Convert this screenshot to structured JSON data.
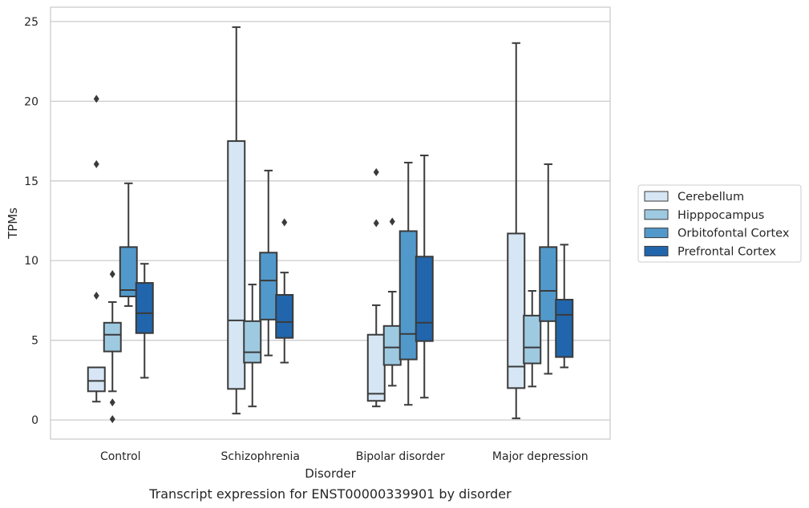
{
  "chart_data": {
    "type": "box",
    "caption": "Transcript expression for ENST00000339901 by disorder",
    "xlabel": "Disorder",
    "ylabel": "TPMs",
    "ylim": [
      -1.2,
      25.9
    ],
    "yticks": [
      0,
      5,
      10,
      15,
      20,
      25
    ],
    "grid": "horizontal",
    "legend_position": "right",
    "categories": [
      "Control",
      "Schizophrenia",
      "Bipolar disorder",
      "Major depression"
    ],
    "series": [
      {
        "name": "Cerebellum",
        "color": "#d6e6f4",
        "boxes": [
          {
            "whislo": 1.15,
            "q1": 1.8,
            "med": 2.45,
            "q3": 3.3,
            "whishi": 3.3,
            "fliers": [
              7.8,
              16.05,
              20.15
            ]
          },
          {
            "whislo": 0.4,
            "q1": 1.95,
            "med": 6.25,
            "q3": 17.5,
            "whishi": 24.65,
            "fliers": []
          },
          {
            "whislo": 0.85,
            "q1": 1.2,
            "med": 1.65,
            "q3": 5.35,
            "whishi": 7.2,
            "fliers": [
              12.35,
              15.55
            ]
          },
          {
            "whislo": 0.1,
            "q1": 2.0,
            "med": 3.35,
            "q3": 11.7,
            "whishi": 23.65,
            "fliers": []
          }
        ]
      },
      {
        "name": "Hipppocampus",
        "color": "#9ecae1",
        "boxes": [
          {
            "whislo": 1.8,
            "q1": 4.3,
            "med": 5.35,
            "q3": 6.1,
            "whishi": 7.4,
            "fliers": [
              0.05,
              1.1,
              9.15
            ]
          },
          {
            "whislo": 0.85,
            "q1": 3.6,
            "med": 4.25,
            "q3": 6.2,
            "whishi": 8.5,
            "fliers": []
          },
          {
            "whislo": 2.15,
            "q1": 3.45,
            "med": 4.55,
            "q3": 5.9,
            "whishi": 8.05,
            "fliers": [
              12.45
            ]
          },
          {
            "whislo": 2.1,
            "q1": 3.55,
            "med": 4.55,
            "q3": 6.55,
            "whishi": 8.1,
            "fliers": []
          }
        ]
      },
      {
        "name": "Orbitofontal Cortex",
        "color": "#5299cb",
        "boxes": [
          {
            "whislo": 7.15,
            "q1": 7.75,
            "med": 8.15,
            "q3": 10.85,
            "whishi": 14.85,
            "fliers": []
          },
          {
            "whislo": 4.05,
            "q1": 6.3,
            "med": 8.75,
            "q3": 10.5,
            "whishi": 15.65,
            "fliers": []
          },
          {
            "whislo": 0.95,
            "q1": 3.8,
            "med": 5.4,
            "q3": 11.85,
            "whishi": 16.15,
            "fliers": []
          },
          {
            "whislo": 2.9,
            "q1": 6.2,
            "med": 8.1,
            "q3": 10.85,
            "whishi": 16.05,
            "fliers": []
          }
        ]
      },
      {
        "name": "Prefrontal Cortex",
        "color": "#2166ac",
        "boxes": [
          {
            "whislo": 2.65,
            "q1": 5.45,
            "med": 6.7,
            "q3": 8.6,
            "whishi": 9.8,
            "fliers": []
          },
          {
            "whislo": 3.6,
            "q1": 5.15,
            "med": 6.15,
            "q3": 7.85,
            "whishi": 9.25,
            "fliers": [
              12.4
            ]
          },
          {
            "whislo": 1.4,
            "q1": 4.95,
            "med": 6.1,
            "q3": 10.25,
            "whishi": 16.6,
            "fliers": []
          },
          {
            "whislo": 3.3,
            "q1": 3.95,
            "med": 6.6,
            "q3": 7.55,
            "whishi": 11.0,
            "fliers": []
          }
        ]
      }
    ]
  }
}
